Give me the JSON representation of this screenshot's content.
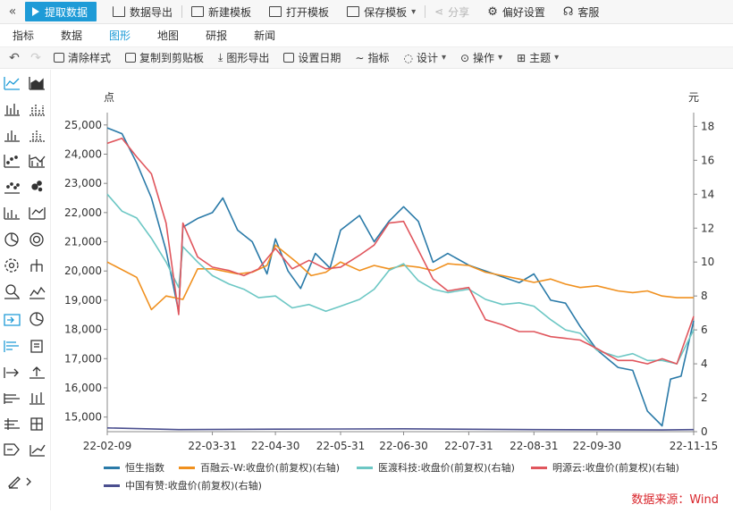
{
  "toolbar": {
    "collapse_icon": "double-chevron-left-icon",
    "fetch_label": "提取数据",
    "export_label": "数据导出",
    "new_template_label": "新建模板",
    "open_template_label": "打开模板",
    "save_template_label": "保存模板",
    "share_label": "分享",
    "preferences_label": "偏好设置",
    "service_label": "客服"
  },
  "tabs": [
    "指标",
    "数据",
    "图形",
    "地图",
    "研报",
    "新闻"
  ],
  "active_tab": "图形",
  "tools": {
    "clear_style": "清除样式",
    "copy_clipboard": "复制到剪贴板",
    "export_chart": "图形导出",
    "set_date": "设置日期",
    "indicator": "指标",
    "design": "设计",
    "operate": "操作",
    "theme": "主题"
  },
  "colors": {
    "accent": "#1e9bd7",
    "hsi": "#2a7aa8",
    "brt": "#f0901e",
    "yidu": "#6cc7c4",
    "mingyuan": "#e0565d",
    "cyxz": "#4b4f8f",
    "source": "#d9262c"
  },
  "chart": {
    "left_unit": "点",
    "right_unit": "元",
    "source": "数据来源：Wind"
  },
  "chart_data": {
    "type": "line",
    "x_ticks": [
      "22-02-09",
      "22-03-31",
      "22-04-30",
      "22-05-31",
      "22-06-30",
      "22-07-31",
      "22-08-31",
      "22-09-30",
      "22-11-15"
    ],
    "x_range": [
      "2022-02-09",
      "2022-11-15"
    ],
    "y_left_ticks": [
      "15,000",
      "16,000",
      "17,000",
      "18,000",
      "19,000",
      "20,000",
      "21,000",
      "22,000",
      "23,000",
      "24,000",
      "25,000"
    ],
    "y_left_range": [
      14500,
      25300
    ],
    "y_right_ticks": [
      "0",
      "2",
      "4",
      "6",
      "8",
      "10",
      "12",
      "14",
      "16",
      "18"
    ],
    "y_right_range": [
      0,
      18.6
    ],
    "series": [
      {
        "name": "恒生指数",
        "axis": "left",
        "points": [
          [
            "2022-02-09",
            24900
          ],
          [
            "2022-02-16",
            24700
          ],
          [
            "2022-02-23",
            23700
          ],
          [
            "2022-03-02",
            22500
          ],
          [
            "2022-03-09",
            20700
          ],
          [
            "2022-03-15",
            18600
          ],
          [
            "2022-03-17",
            21500
          ],
          [
            "2022-03-24",
            21800
          ],
          [
            "2022-03-31",
            22000
          ],
          [
            "2022-04-05",
            22500
          ],
          [
            "2022-04-12",
            21400
          ],
          [
            "2022-04-19",
            21000
          ],
          [
            "2022-04-26",
            19900
          ],
          [
            "2022-04-30",
            21100
          ],
          [
            "2022-05-06",
            20000
          ],
          [
            "2022-05-12",
            19400
          ],
          [
            "2022-05-19",
            20600
          ],
          [
            "2022-05-26",
            20100
          ],
          [
            "2022-05-31",
            21400
          ],
          [
            "2022-06-09",
            21900
          ],
          [
            "2022-06-16",
            21000
          ],
          [
            "2022-06-23",
            21700
          ],
          [
            "2022-06-30",
            22200
          ],
          [
            "2022-07-07",
            21700
          ],
          [
            "2022-07-14",
            20300
          ],
          [
            "2022-07-21",
            20600
          ],
          [
            "2022-07-31",
            20200
          ],
          [
            "2022-08-08",
            20000
          ],
          [
            "2022-08-16",
            19800
          ],
          [
            "2022-08-24",
            19600
          ],
          [
            "2022-08-31",
            19900
          ],
          [
            "2022-09-08",
            19000
          ],
          [
            "2022-09-15",
            18900
          ],
          [
            "2022-09-22",
            18100
          ],
          [
            "2022-09-30",
            17300
          ],
          [
            "2022-10-10",
            16700
          ],
          [
            "2022-10-17",
            16600
          ],
          [
            "2022-10-24",
            15200
          ],
          [
            "2022-10-31",
            14700
          ],
          [
            "2022-11-04",
            16300
          ],
          [
            "2022-11-09",
            16400
          ],
          [
            "2022-11-15",
            18300
          ]
        ]
      },
      {
        "name": "百融云-W:收盘价(前复权)(右轴)",
        "axis": "right",
        "points": [
          [
            "2022-02-09",
            10.0
          ],
          [
            "2022-02-23",
            9.1
          ],
          [
            "2022-03-02",
            7.2
          ],
          [
            "2022-03-09",
            8.0
          ],
          [
            "2022-03-17",
            7.8
          ],
          [
            "2022-03-24",
            9.6
          ],
          [
            "2022-03-31",
            9.6
          ],
          [
            "2022-04-12",
            9.3
          ],
          [
            "2022-04-19",
            9.4
          ],
          [
            "2022-04-26",
            9.8
          ],
          [
            "2022-04-30",
            11.0
          ],
          [
            "2022-05-10",
            10.0
          ],
          [
            "2022-05-17",
            9.2
          ],
          [
            "2022-05-24",
            9.4
          ],
          [
            "2022-05-31",
            10.0
          ],
          [
            "2022-06-09",
            9.5
          ],
          [
            "2022-06-16",
            9.8
          ],
          [
            "2022-06-23",
            9.6
          ],
          [
            "2022-06-30",
            9.8
          ],
          [
            "2022-07-07",
            9.7
          ],
          [
            "2022-07-14",
            9.5
          ],
          [
            "2022-07-21",
            9.9
          ],
          [
            "2022-07-31",
            9.8
          ],
          [
            "2022-08-08",
            9.4
          ],
          [
            "2022-08-16",
            9.2
          ],
          [
            "2022-08-24",
            9.0
          ],
          [
            "2022-08-31",
            8.8
          ],
          [
            "2022-09-08",
            9.0
          ],
          [
            "2022-09-15",
            8.7
          ],
          [
            "2022-09-22",
            8.5
          ],
          [
            "2022-09-30",
            8.6
          ],
          [
            "2022-10-10",
            8.3
          ],
          [
            "2022-10-17",
            8.2
          ],
          [
            "2022-10-24",
            8.3
          ],
          [
            "2022-10-31",
            8.0
          ],
          [
            "2022-11-07",
            7.9
          ],
          [
            "2022-11-15",
            7.9
          ]
        ]
      },
      {
        "name": "医渡科技:收盘价(前复权)(右轴)",
        "axis": "right",
        "points": [
          [
            "2022-02-09",
            14.0
          ],
          [
            "2022-02-16",
            13.0
          ],
          [
            "2022-02-23",
            12.6
          ],
          [
            "2022-03-02",
            11.4
          ],
          [
            "2022-03-09",
            10.0
          ],
          [
            "2022-03-15",
            8.5
          ],
          [
            "2022-03-17",
            10.9
          ],
          [
            "2022-03-24",
            10.0
          ],
          [
            "2022-03-31",
            9.2
          ],
          [
            "2022-04-08",
            8.7
          ],
          [
            "2022-04-15",
            8.4
          ],
          [
            "2022-04-22",
            7.9
          ],
          [
            "2022-04-30",
            8.0
          ],
          [
            "2022-05-08",
            7.3
          ],
          [
            "2022-05-16",
            7.5
          ],
          [
            "2022-05-24",
            7.1
          ],
          [
            "2022-05-31",
            7.4
          ],
          [
            "2022-06-09",
            7.8
          ],
          [
            "2022-06-16",
            8.4
          ],
          [
            "2022-06-23",
            9.5
          ],
          [
            "2022-06-30",
            9.9
          ],
          [
            "2022-07-07",
            8.9
          ],
          [
            "2022-07-14",
            8.4
          ],
          [
            "2022-07-21",
            8.2
          ],
          [
            "2022-07-31",
            8.4
          ],
          [
            "2022-08-08",
            7.8
          ],
          [
            "2022-08-16",
            7.5
          ],
          [
            "2022-08-24",
            7.6
          ],
          [
            "2022-08-31",
            7.4
          ],
          [
            "2022-09-08",
            6.6
          ],
          [
            "2022-09-15",
            6.0
          ],
          [
            "2022-09-22",
            5.8
          ],
          [
            "2022-09-30",
            4.8
          ],
          [
            "2022-10-10",
            4.4
          ],
          [
            "2022-10-17",
            4.6
          ],
          [
            "2022-10-24",
            4.2
          ],
          [
            "2022-10-31",
            4.2
          ],
          [
            "2022-11-07",
            4.0
          ],
          [
            "2022-11-15",
            6.0
          ]
        ]
      },
      {
        "name": "明源云:收盘价(前复权)(右轴)",
        "axis": "right",
        "points": [
          [
            "2022-02-09",
            17.0
          ],
          [
            "2022-02-16",
            17.3
          ],
          [
            "2022-02-23",
            16.2
          ],
          [
            "2022-03-02",
            15.2
          ],
          [
            "2022-03-09",
            12.3
          ],
          [
            "2022-03-15",
            6.9
          ],
          [
            "2022-03-17",
            12.3
          ],
          [
            "2022-03-24",
            10.3
          ],
          [
            "2022-03-31",
            9.7
          ],
          [
            "2022-04-08",
            9.5
          ],
          [
            "2022-04-15",
            9.2
          ],
          [
            "2022-04-22",
            9.6
          ],
          [
            "2022-04-30",
            10.8
          ],
          [
            "2022-05-08",
            9.6
          ],
          [
            "2022-05-16",
            10.1
          ],
          [
            "2022-05-24",
            9.6
          ],
          [
            "2022-05-31",
            9.7
          ],
          [
            "2022-06-09",
            10.4
          ],
          [
            "2022-06-16",
            11.0
          ],
          [
            "2022-06-23",
            12.3
          ],
          [
            "2022-06-30",
            12.4
          ],
          [
            "2022-07-07",
            10.7
          ],
          [
            "2022-07-14",
            9.0
          ],
          [
            "2022-07-21",
            8.3
          ],
          [
            "2022-07-31",
            8.5
          ],
          [
            "2022-08-08",
            6.6
          ],
          [
            "2022-08-16",
            6.3
          ],
          [
            "2022-08-24",
            5.9
          ],
          [
            "2022-08-31",
            5.9
          ],
          [
            "2022-09-08",
            5.6
          ],
          [
            "2022-09-15",
            5.5
          ],
          [
            "2022-09-22",
            5.4
          ],
          [
            "2022-09-30",
            4.9
          ],
          [
            "2022-10-10",
            4.2
          ],
          [
            "2022-10-17",
            4.2
          ],
          [
            "2022-10-24",
            4.0
          ],
          [
            "2022-10-31",
            4.3
          ],
          [
            "2022-11-07",
            4.0
          ],
          [
            "2022-11-15",
            6.8
          ]
        ]
      },
      {
        "name": "中国有赞:收盘价(前复权)(右轴)",
        "axis": "right",
        "points": [
          [
            "2022-02-09",
            0.22
          ],
          [
            "2022-03-15",
            0.12
          ],
          [
            "2022-04-30",
            0.15
          ],
          [
            "2022-06-30",
            0.17
          ],
          [
            "2022-08-31",
            0.12
          ],
          [
            "2022-10-31",
            0.1
          ],
          [
            "2022-11-15",
            0.12
          ]
        ]
      }
    ]
  }
}
